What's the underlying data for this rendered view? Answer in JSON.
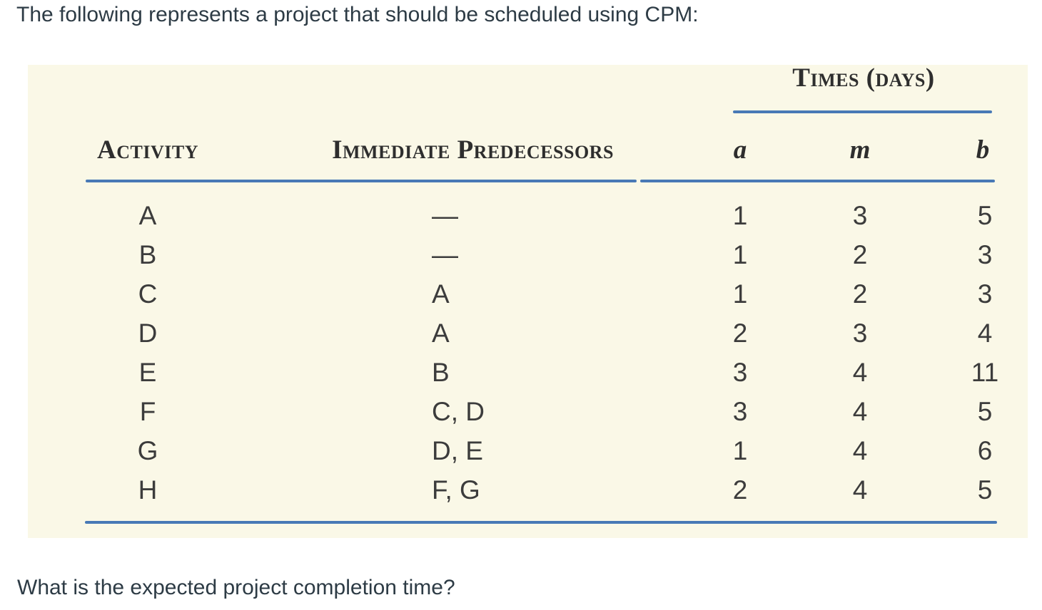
{
  "page": {
    "intro_text": "The following represents a project that should be scheduled using CPM:",
    "question_text": "What is the expected project completion time?"
  },
  "table": {
    "times_group_header": "Times (days)",
    "columns": {
      "activity": "Activity",
      "predecessors": "Immediate Predecessors",
      "a": "a",
      "m": "m",
      "b": "b"
    },
    "rows": [
      {
        "activity": "A",
        "predecessors": "—",
        "a": "1",
        "m": "3",
        "b": "5"
      },
      {
        "activity": "B",
        "predecessors": "—",
        "a": "1",
        "m": "2",
        "b": "3"
      },
      {
        "activity": "C",
        "predecessors": "A",
        "a": "1",
        "m": "2",
        "b": "3"
      },
      {
        "activity": "D",
        "predecessors": "A",
        "a": "2",
        "m": "3",
        "b": "4"
      },
      {
        "activity": "E",
        "predecessors": "B",
        "a": "3",
        "m": "4",
        "b": "11"
      },
      {
        "activity": "F",
        "predecessors": "C, D",
        "a": "3",
        "m": "4",
        "b": "5"
      },
      {
        "activity": "G",
        "predecessors": "D, E",
        "a": "1",
        "m": "4",
        "b": "6"
      },
      {
        "activity": "H",
        "predecessors": "F, G",
        "a": "2",
        "m": "4",
        "b": "5"
      }
    ]
  },
  "colors": {
    "table_background": "#faf8e7",
    "rule_blue": "#4879b6",
    "page_text": "#2d3b45",
    "table_text": "#3c3c3c"
  }
}
